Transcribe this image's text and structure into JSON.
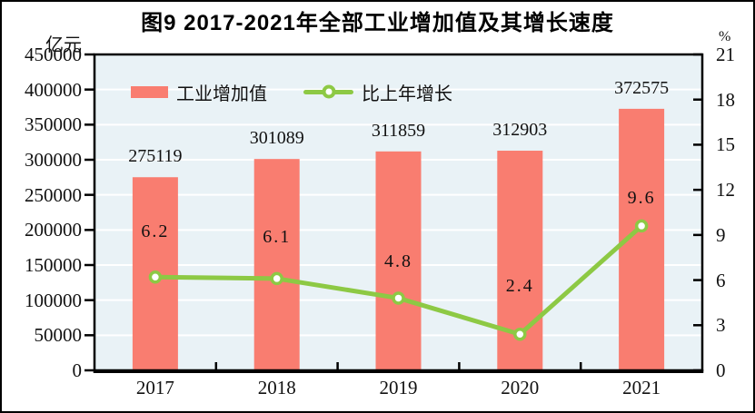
{
  "figure": {
    "title": "图9  2017-2021年全部工业增加值及其增长速度",
    "left_unit": "亿元",
    "right_unit": "%"
  },
  "legend": {
    "items": [
      {
        "label": "工业增加值",
        "marker": "bar-swatch"
      },
      {
        "label": "比上年增长",
        "marker": "line-with-circle-marker"
      }
    ]
  },
  "chart_data": {
    "type": "bar+line",
    "title": "图9  2017-2021年全部工业增加值及其增长速度",
    "categories": [
      "2017",
      "2018",
      "2019",
      "2020",
      "2021"
    ],
    "series": [
      {
        "name": "工业增加值",
        "type": "bar",
        "axis": "left",
        "unit": "亿元",
        "values": [
          275119,
          301089,
          311859,
          312903,
          372575
        ],
        "color": "#F97D70"
      },
      {
        "name": "比上年增长",
        "type": "line",
        "axis": "right",
        "unit": "%",
        "values": [
          6.2,
          6.1,
          4.8,
          2.4,
          9.6
        ],
        "color": "#8DC944"
      }
    ],
    "left_axis": {
      "label": "亿元",
      "min": 0,
      "max": 450000,
      "step": 50000
    },
    "right_axis": {
      "label": "%",
      "min": 0,
      "max": 21,
      "step": 3
    },
    "grid": "horizontal-white-on-left-steps",
    "legend_position": "top-left-inside",
    "colors": {
      "plot_background": "#E9F2F6",
      "gridline": "#FFFFFF",
      "frame": "#000000",
      "bar": "#F97D70",
      "line": "#8DC944",
      "marker_fill": "#FFFFFF"
    }
  }
}
